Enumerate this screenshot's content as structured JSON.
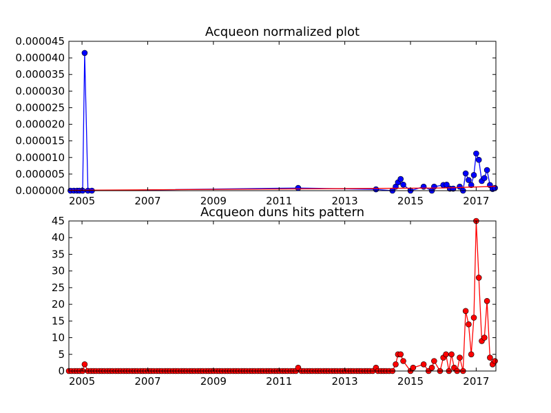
{
  "chart_data": [
    {
      "type": "line",
      "title": "Acqueon normalized plot",
      "xlabel": "",
      "ylabel": "",
      "xlim": [
        2004.6,
        2017.6
      ],
      "ylim": [
        0,
        4.5e-05
      ],
      "x_ticks": [
        2005,
        2007,
        2009,
        2011,
        2013,
        2015,
        2017
      ],
      "x_tick_labels": [
        "2005",
        "2007",
        "2009",
        "2011",
        "2013",
        "2015",
        "2017"
      ],
      "y_ticks": [
        0,
        5e-06,
        1e-05,
        1.5e-05,
        2e-05,
        2.5e-05,
        3e-05,
        3.5e-05,
        4e-05,
        4.5e-05
      ],
      "y_tick_labels": [
        "0.000000",
        "0.000005",
        "0.000010",
        "0.000015",
        "0.000020",
        "0.000025",
        "0.000030",
        "0.000035",
        "0.000040",
        "0.000045"
      ],
      "grid": false,
      "series": [
        {
          "color": "#0000ff",
          "marker": "circle",
          "points": [
            [
              2004.65,
              0
            ],
            [
              2004.75,
              0
            ],
            [
              2004.85,
              0
            ],
            [
              2004.92,
              0
            ],
            [
              2005.02,
              0
            ],
            [
              2005.08,
              4.15e-05
            ],
            [
              2005.18,
              0
            ],
            [
              2005.3,
              0
            ],
            [
              2011.58,
              8e-07
            ],
            [
              2013.95,
              4e-07
            ],
            [
              2014.45,
              0
            ],
            [
              2014.55,
              1.2e-06
            ],
            [
              2014.62,
              2.5e-06
            ],
            [
              2014.7,
              3.5e-06
            ],
            [
              2014.78,
              1.8e-06
            ],
            [
              2015.0,
              0
            ],
            [
              2015.4,
              1.2e-06
            ],
            [
              2015.65,
              0
            ],
            [
              2015.72,
              1.2e-06
            ],
            [
              2016.0,
              1.7e-06
            ],
            [
              2016.1,
              1.8e-06
            ],
            [
              2016.2,
              6e-07
            ],
            [
              2016.3,
              6e-07
            ],
            [
              2016.5,
              1.2e-06
            ],
            [
              2016.6,
              0
            ],
            [
              2016.68,
              5.2e-06
            ],
            [
              2016.77,
              3.2e-06
            ],
            [
              2016.85,
              1.7e-06
            ],
            [
              2016.93,
              4.7e-06
            ],
            [
              2017.0,
              1.12e-05
            ],
            [
              2017.08,
              9.3e-06
            ],
            [
              2017.17,
              2.9e-06
            ],
            [
              2017.25,
              3.8e-06
            ],
            [
              2017.33,
              6.2e-06
            ],
            [
              2017.42,
              1.7e-06
            ],
            [
              2017.5,
              5e-07
            ],
            [
              2017.57,
              8e-07
            ]
          ]
        },
        {
          "color": "#ff0000",
          "marker": "none",
          "points": [
            [
              2004.6,
              1e-07
            ],
            [
              2016.0,
              8e-07
            ],
            [
              2017.6,
              1.3e-06
            ]
          ]
        }
      ]
    },
    {
      "type": "line",
      "title": "Acqueon duns hits pattern",
      "xlabel": "",
      "ylabel": "",
      "xlim": [
        2004.6,
        2017.6
      ],
      "ylim": [
        0,
        45
      ],
      "x_ticks": [
        2005,
        2007,
        2009,
        2011,
        2013,
        2015,
        2017
      ],
      "x_tick_labels": [
        "2005",
        "2007",
        "2009",
        "2011",
        "2013",
        "2015",
        "2017"
      ],
      "y_ticks": [
        0,
        5,
        10,
        15,
        20,
        25,
        30,
        35,
        40,
        45
      ],
      "y_tick_labels": [
        "0",
        "5",
        "10",
        "15",
        "20",
        "25",
        "30",
        "35",
        "40",
        "45"
      ],
      "grid": false,
      "series": [
        {
          "color": "#ff0000",
          "marker": "circle",
          "points": [
            [
              2005.08,
              2
            ],
            [
              2011.58,
              1
            ],
            [
              2013.95,
              1
            ],
            [
              2014.45,
              0
            ],
            [
              2014.55,
              2
            ],
            [
              2014.62,
              5
            ],
            [
              2014.7,
              5
            ],
            [
              2014.78,
              3
            ],
            [
              2015.0,
              0
            ],
            [
              2015.08,
              1
            ],
            [
              2015.4,
              2
            ],
            [
              2015.55,
              0
            ],
            [
              2015.65,
              1
            ],
            [
              2015.72,
              3
            ],
            [
              2015.9,
              0
            ],
            [
              2016.0,
              4
            ],
            [
              2016.08,
              5
            ],
            [
              2016.17,
              0
            ],
            [
              2016.25,
              5
            ],
            [
              2016.33,
              1
            ],
            [
              2016.42,
              0
            ],
            [
              2016.5,
              4
            ],
            [
              2016.6,
              0
            ],
            [
              2016.68,
              18
            ],
            [
              2016.77,
              14
            ],
            [
              2016.85,
              5
            ],
            [
              2016.93,
              16
            ],
            [
              2017.0,
              45
            ],
            [
              2017.08,
              28
            ],
            [
              2017.17,
              9
            ],
            [
              2017.25,
              10
            ],
            [
              2017.33,
              21
            ],
            [
              2017.42,
              4
            ],
            [
              2017.5,
              2
            ],
            [
              2017.57,
              3
            ]
          ],
          "zero_points_from": 2004.6,
          "zero_points_to": 2014.5,
          "zero_points_step": 0.0833
        }
      ]
    }
  ]
}
